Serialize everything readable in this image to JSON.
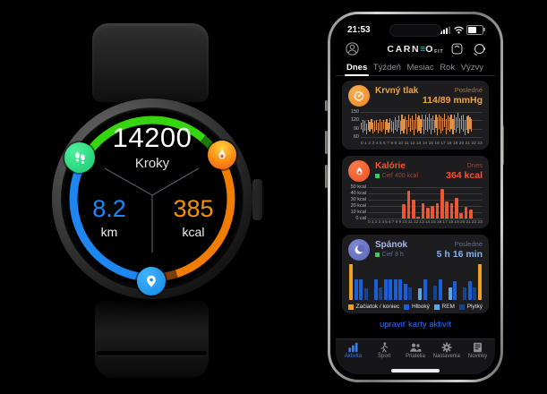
{
  "colors": {
    "arc_green": "#35d60e",
    "arc_green_dim": "#1d7a08",
    "arc_blue": "#1e86f0",
    "arc_orange": "#f07c00",
    "arc_orange_dim": "#7a3c08",
    "accent_bp": "#f2a33e",
    "accent_cal": "#ff4f2e",
    "accent_sleep": "#7fb2f2",
    "goal_green": "#30d158",
    "link_blue": "#2b6ff0",
    "tab_active_blue": "#2f7cf6",
    "bp_bar": "#e09040",
    "cal_bar": "#f25430",
    "sleep_deep": "#1b5fd8",
    "sleep_light": "#16428f",
    "sleep_rem": "#5aa8e8",
    "sleep_edge": "#f0a020"
  },
  "watch": {
    "steps_value": "14200",
    "steps_label": "Kroky",
    "distance_value": "8.2",
    "distance_unit": "km",
    "calories_value": "385",
    "calories_unit": "kcal"
  },
  "phone": {
    "status": {
      "time": "21:53"
    },
    "header": {
      "logo_left": "CARN",
      "logo_e": "≡",
      "logo_right": "O",
      "logo_sub": "FIT"
    },
    "tabs": [
      {
        "label": "Dnes",
        "active": true
      },
      {
        "label": "Týždeň",
        "active": false
      },
      {
        "label": "Mesiac",
        "active": false
      },
      {
        "label": "Rok",
        "active": false
      },
      {
        "label": "Výzvy",
        "active": false
      }
    ],
    "cards": {
      "blood_pressure": {
        "title": "Krvný tlak",
        "period_label": "Posledné",
        "value": "114/89 mmHg"
      },
      "calories": {
        "title": "Kalórie",
        "goal": "Cieľ 400 kcal",
        "period_label": "Dnes",
        "value": "364 kcal"
      },
      "sleep": {
        "title": "Spánok",
        "goal": "Cieľ 8 h",
        "period_label": "Posledné",
        "value": "5 h 16 min",
        "legend": [
          {
            "label": "Začiatok / koniec",
            "color": "#f0a020"
          },
          {
            "label": "Hlboký",
            "color": "#1b5fd8"
          },
          {
            "label": "REM",
            "color": "#5aa8e8"
          },
          {
            "label": "Plytký",
            "color": "#16428f"
          }
        ]
      }
    },
    "edit_link": "upraviť karty aktivít",
    "tabbar": [
      {
        "label": "Aktivita",
        "active": true
      },
      {
        "label": "Šport",
        "active": false
      },
      {
        "label": "Priatelia",
        "active": false
      },
      {
        "label": "Nastavenia",
        "active": false
      },
      {
        "label": "Novinky",
        "active": false
      }
    ]
  },
  "chart_data": [
    {
      "type": "range-bar",
      "title": "Krvný tlak",
      "unit": "mmHg",
      "latest": "114/89",
      "ymin": 50,
      "ymax": 160,
      "y_ticks": [
        150,
        120,
        90,
        60
      ],
      "x_labels": [
        "0",
        "1",
        "2",
        "3",
        "4",
        "5",
        "6",
        "7",
        "8",
        "9",
        "10",
        "11",
        "12",
        "13",
        "14",
        "15",
        "16",
        "17",
        "18",
        "19",
        "20",
        "21",
        "22",
        "23"
      ],
      "span_fraction": 0.92,
      "bars": [
        [
          88,
          112
        ],
        [
          76,
          122
        ],
        [
          82,
          118
        ],
        [
          70,
          108
        ],
        [
          85,
          120
        ],
        [
          78,
          115
        ],
        [
          90,
          125
        ],
        [
          72,
          110
        ],
        [
          80,
          118
        ],
        [
          86,
          122
        ],
        [
          74,
          112
        ],
        [
          82,
          126
        ],
        [
          78,
          116
        ],
        [
          88,
          120
        ],
        [
          70,
          114
        ],
        [
          84,
          124
        ],
        [
          76,
          110
        ],
        [
          90,
          128
        ],
        [
          80,
          118
        ],
        [
          72,
          116
        ],
        [
          86,
          130
        ],
        [
          78,
          122
        ],
        [
          92,
          138
        ],
        [
          68,
          118
        ],
        [
          82,
          142
        ],
        [
          74,
          126
        ],
        [
          88,
          134
        ],
        [
          70,
          120
        ],
        [
          95,
          140
        ],
        [
          78,
          128
        ],
        [
          84,
          136
        ],
        [
          66,
          122
        ],
        [
          90,
          144
        ],
        [
          76,
          130
        ],
        [
          82,
          138
        ],
        [
          72,
          124
        ],
        [
          94,
          142
        ],
        [
          68,
          126
        ],
        [
          86,
          140
        ],
        [
          78,
          132
        ],
        [
          90,
          145
        ],
        [
          70,
          128
        ],
        [
          84,
          138
        ],
        [
          76,
          122
        ],
        [
          92,
          140
        ],
        [
          66,
          130
        ],
        [
          88,
          142
        ],
        [
          74,
          134
        ],
        [
          82,
          128
        ],
        [
          94,
          144
        ],
        [
          70,
          126
        ],
        [
          86,
          138
        ],
        [
          78,
          130
        ],
        [
          90,
          142
        ],
        [
          68,
          124
        ],
        [
          84,
          140
        ],
        [
          76,
          132
        ],
        [
          92,
          146
        ],
        [
          72,
          128
        ],
        [
          88,
          136
        ],
        [
          80,
          142
        ],
        [
          66,
          120
        ],
        [
          86,
          134
        ],
        [
          74,
          138
        ],
        [
          90,
          130
        ],
        [
          78,
          124
        ]
      ]
    },
    {
      "type": "bar",
      "title": "Kalórie",
      "unit": "kcal",
      "total": 364,
      "goal": 400,
      "ymin": 0,
      "ymax": 55,
      "y_ticks": [
        {
          "v": 50,
          "label": "50 kcal"
        },
        {
          "v": 40,
          "label": "40 kcal"
        },
        {
          "v": 30,
          "label": "30 kcal"
        },
        {
          "v": 20,
          "label": "20 kcal"
        },
        {
          "v": 10,
          "label": "10 kcal"
        },
        {
          "v": 0,
          "label": "0 cal"
        }
      ],
      "x_labels": [
        "0",
        "1",
        "2",
        "3",
        "4",
        "5",
        "6",
        "7",
        "8",
        "9",
        "10",
        "11",
        "12",
        "13",
        "14",
        "15",
        "16",
        "17",
        "18",
        "19",
        "20",
        "21",
        "22",
        "23"
      ],
      "values": [
        0,
        0,
        0,
        0,
        0,
        0,
        0,
        23,
        45,
        31,
        3,
        25,
        17,
        20,
        24,
        48,
        27,
        25,
        34,
        9,
        19,
        14,
        0,
        0
      ]
    },
    {
      "type": "bar",
      "title": "Spánok",
      "duration": "5 h 16 min",
      "goal_hours": 8,
      "legend": [
        "Začiatok / koniec",
        "Hlboký",
        "REM",
        "Plytký"
      ],
      "segments": [
        {
          "v": 100,
          "t": "s"
        },
        {
          "v": 58,
          "t": "d"
        },
        {
          "v": 58,
          "t": "d"
        },
        {
          "v": 32,
          "t": "p"
        },
        {
          "v": 0,
          "t": "g"
        },
        {
          "v": 58,
          "t": "d"
        },
        {
          "v": 36,
          "t": "p"
        },
        {
          "v": 58,
          "t": "d"
        },
        {
          "v": 58,
          "t": "d"
        },
        {
          "v": 58,
          "t": "d"
        },
        {
          "v": 58,
          "t": "d"
        },
        {
          "v": 44,
          "t": "d"
        },
        {
          "v": 36,
          "t": "p"
        },
        {
          "v": 0,
          "t": "g"
        },
        {
          "v": 32,
          "t": "r"
        },
        {
          "v": 58,
          "t": "d"
        },
        {
          "v": 0,
          "t": "g"
        },
        {
          "v": 40,
          "t": "p"
        },
        {
          "v": 58,
          "t": "d"
        },
        {
          "v": 0,
          "t": "g"
        },
        {
          "v": 34,
          "t": "r"
        },
        {
          "v": 52,
          "t": "d"
        },
        {
          "v": 0,
          "t": "g"
        },
        {
          "v": 36,
          "t": "p"
        },
        {
          "v": 52,
          "t": "d"
        },
        {
          "v": 34,
          "t": "p"
        },
        {
          "v": 100,
          "t": "s"
        }
      ]
    }
  ]
}
